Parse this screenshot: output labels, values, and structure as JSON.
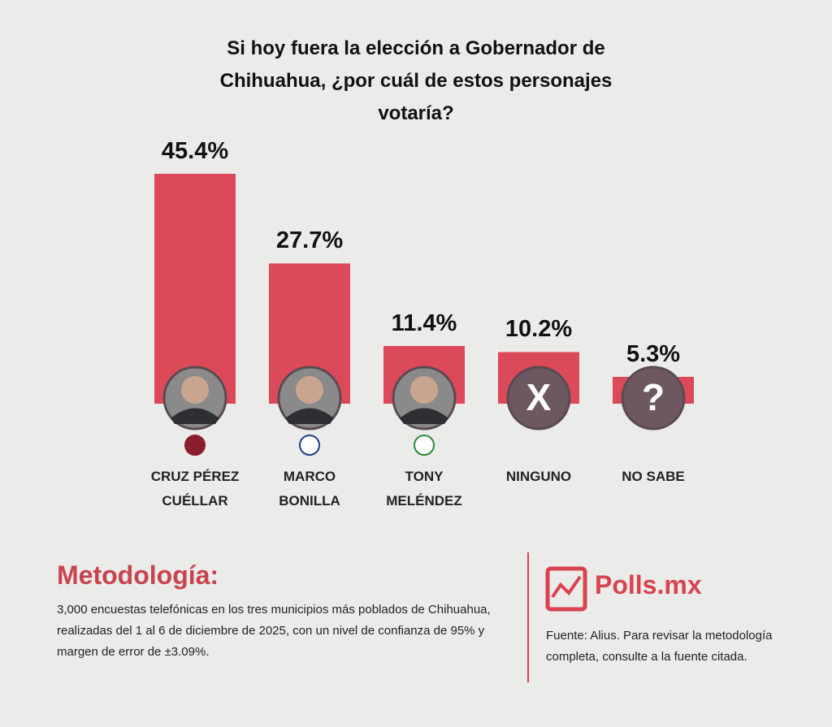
{
  "chart_data": {
    "type": "bar",
    "title": "Si hoy fuera la elección a Gobernador de Chihuahua, ¿por cuál de estos personajes votaría?",
    "categories": [
      "CRUZ PÉREZ CUÉLLAR",
      "MARCO BONILLA",
      "TONY MELÉNDEZ",
      "NINGUNO",
      "NO SABE"
    ],
    "values": [
      45.4,
      27.7,
      11.4,
      10.2,
      5.3
    ],
    "value_labels": [
      "45.4%",
      "27.7%",
      "11.4%",
      "10.2%",
      "5.3%"
    ],
    "color": "#dc4a5a",
    "icons": [
      null,
      null,
      null,
      "X",
      "?"
    ]
  },
  "methodology": {
    "heading": "Metodología:",
    "text": "3,000 encuestas telefónicas en los tres municipios más poblados de Chihuahua, realizadas del 1 al 6 de diciembre de 2025, con un nivel de confianza de 95% y margen de error de ±3.09%."
  },
  "brand": "Polls.mx",
  "source": "Fuente: Alius. Para revisar la metodología completa, consulte a la fuente citada."
}
